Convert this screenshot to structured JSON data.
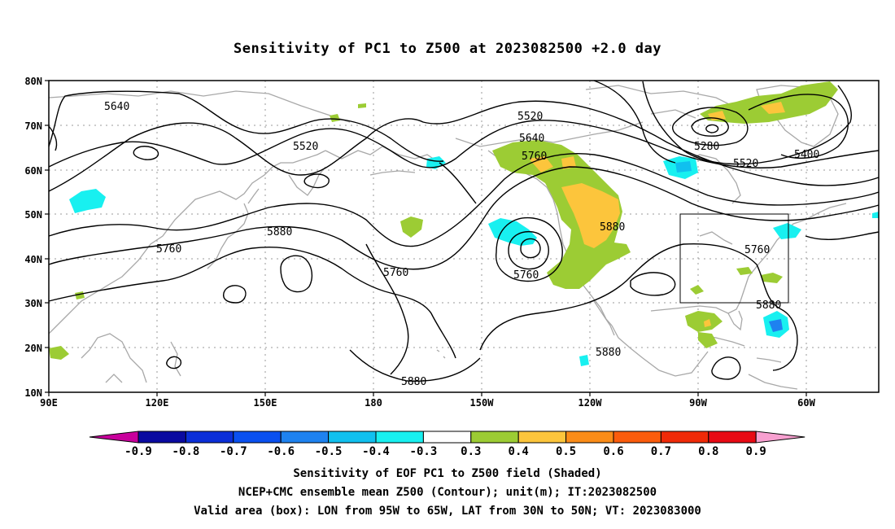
{
  "title": "Sensitivity of PC1 to Z500 at 2023082500 +2.0 day",
  "map": {
    "lat_labels": [
      "80N",
      "70N",
      "60N",
      "50N",
      "40N",
      "30N",
      "20N",
      "10N"
    ],
    "lon_labels": [
      "90E",
      "120E",
      "150E",
      "180",
      "150W",
      "120W",
      "90W",
      "60W"
    ],
    "contour_labels": [
      "5640",
      "5520",
      "5760",
      "5880",
      "5520",
      "5640",
      "5760",
      "5280",
      "5400",
      "5520",
      "5880",
      "5760",
      "5760",
      "5880",
      "5880",
      "5880"
    ],
    "valid_box": {
      "lon": [
        "95W",
        "65W"
      ],
      "lat": [
        "30N",
        "50N"
      ]
    }
  },
  "colorbar": {
    "labels": [
      "-0.9",
      "-0.8",
      "-0.7",
      "-0.6",
      "-0.5",
      "-0.4",
      "-0.3",
      "0.3",
      "0.4",
      "0.5",
      "0.6",
      "0.7",
      "0.8",
      "0.9"
    ],
    "colors": [
      "#c8009c",
      "#0a0aa0",
      "#0b2fd8",
      "#0a50f0",
      "#1e82f0",
      "#10c0ef",
      "#18f0f0",
      "#ffffff",
      "#9ccc34",
      "#fcc53c",
      "#fb8c18",
      "#fb5c0c",
      "#f02a08",
      "#e80a14",
      "#f8a0d0"
    ]
  },
  "captions": [
    "Sensitivity of EOF PC1 to Z500 field (Shaded)",
    "NCEP+CMC ensemble mean Z500 (Contour); unit(m); IT:2023082500",
    "Valid area (box): LON from 95W to 65W, LAT from 30N to 50N; VT: 2023083000"
  ]
}
